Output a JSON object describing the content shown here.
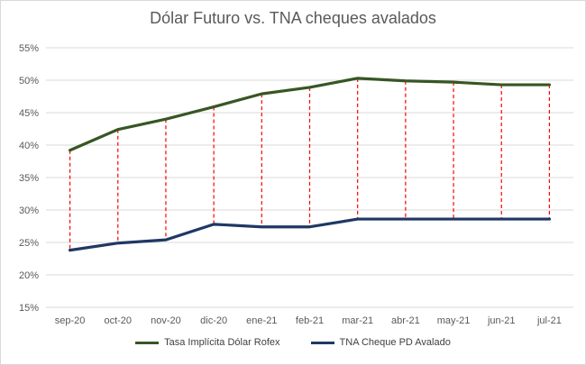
{
  "chart_data": {
    "type": "line",
    "title": "Dólar Futuro vs. TNA cheques avalados",
    "categories": [
      "sep-20",
      "oct-20",
      "nov-20",
      "dic-20",
      "ene-21",
      "feb-21",
      "mar-21",
      "abr-21",
      "may-21",
      "jun-21",
      "jul-21"
    ],
    "y_ticks": [
      "15%",
      "20%",
      "25%",
      "30%",
      "35%",
      "40%",
      "45%",
      "50%",
      "55%"
    ],
    "ylim": [
      15,
      55
    ],
    "grid": true,
    "legend_position": "bottom",
    "series": [
      {
        "name": "Tasa Implícita Dólar Rofex",
        "color": "#375623",
        "values": [
          39.2,
          42.4,
          44.0,
          45.9,
          47.9,
          48.9,
          50.3,
          49.9,
          49.7,
          49.3,
          49.3
        ]
      },
      {
        "name": "TNA Cheque PD Avalado",
        "color": "#1f3864",
        "values": [
          23.8,
          24.9,
          25.4,
          27.8,
          27.4,
          27.4,
          28.6,
          28.6,
          28.6,
          28.6,
          28.6
        ]
      }
    ],
    "drop_line_color": "#ff0000"
  }
}
